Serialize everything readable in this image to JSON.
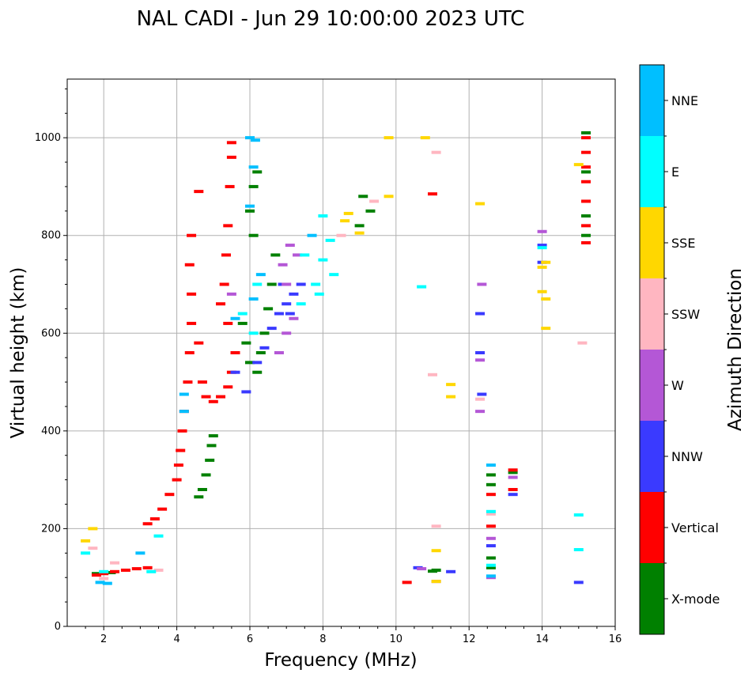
{
  "chart_data": {
    "type": "scatter",
    "title": "NAL CADI - Jun 29 10:00:00 2023 UTC",
    "xlabel": "Frequency (MHz)",
    "ylabel": "Virtual height (km)",
    "xlim": [
      1,
      16
    ],
    "ylim": [
      0,
      1120
    ],
    "xticks": [
      2,
      4,
      6,
      8,
      10,
      12,
      14,
      16
    ],
    "yticks": [
      0,
      200,
      400,
      600,
      800,
      1000
    ],
    "grid": true,
    "colorbar": {
      "label": "Azimuth Direction",
      "categories": [
        {
          "name": "X-mode",
          "color": "#008000"
        },
        {
          "name": "Vertical",
          "color": "#ff0000"
        },
        {
          "name": "NNW",
          "color": "#3a3aff"
        },
        {
          "name": "W",
          "color": "#b457d6"
        },
        {
          "name": "SSW",
          "color": "#ffb6c1"
        },
        {
          "name": "SSE",
          "color": "#ffd700"
        },
        {
          "name": "E",
          "color": "#00ffff"
        },
        {
          "name": "NNE",
          "color": "#00bfff"
        }
      ]
    },
    "series": [
      {
        "name": "X-mode",
        "points": [
          [
            5.0,
            390
          ],
          [
            4.95,
            370
          ],
          [
            4.9,
            340
          ],
          [
            4.8,
            310
          ],
          [
            4.7,
            280
          ],
          [
            4.6,
            265
          ],
          [
            6.2,
            520
          ],
          [
            6.3,
            560
          ],
          [
            6.4,
            600
          ],
          [
            6.5,
            650
          ],
          [
            6.6,
            700
          ],
          [
            6.7,
            760
          ],
          [
            6.1,
            800
          ],
          [
            6.0,
            850
          ],
          [
            6.1,
            900
          ],
          [
            6.2,
            930
          ],
          [
            5.8,
            620
          ],
          [
            5.9,
            580
          ],
          [
            6.0,
            540
          ],
          [
            9.1,
            880
          ],
          [
            9.3,
            850
          ],
          [
            9.0,
            820
          ],
          [
            11.1,
            115
          ],
          [
            11.0,
            113
          ],
          [
            12.6,
            310
          ],
          [
            12.6,
            290
          ],
          [
            12.6,
            140
          ],
          [
            12.6,
            120
          ],
          [
            13.2,
            315
          ],
          [
            15.2,
            1010
          ],
          [
            15.2,
            930
          ],
          [
            15.2,
            840
          ],
          [
            15.2,
            800
          ],
          [
            2.2,
            110
          ],
          [
            1.8,
            108
          ]
        ]
      },
      {
        "name": "Vertical",
        "points": [
          [
            1.8,
            105
          ],
          [
            2.0,
            108
          ],
          [
            2.3,
            112
          ],
          [
            2.6,
            115
          ],
          [
            2.9,
            118
          ],
          [
            3.2,
            120
          ],
          [
            3.2,
            210
          ],
          [
            3.4,
            220
          ],
          [
            3.6,
            240
          ],
          [
            3.8,
            270
          ],
          [
            4.0,
            300
          ],
          [
            4.05,
            330
          ],
          [
            4.1,
            360
          ],
          [
            4.15,
            400
          ],
          [
            4.2,
            440
          ],
          [
            4.3,
            500
          ],
          [
            4.35,
            560
          ],
          [
            4.4,
            620
          ],
          [
            4.4,
            680
          ],
          [
            4.35,
            740
          ],
          [
            4.4,
            800
          ],
          [
            4.6,
            580
          ],
          [
            4.7,
            500
          ],
          [
            4.8,
            470
          ],
          [
            5.0,
            460
          ],
          [
            5.2,
            470
          ],
          [
            5.4,
            490
          ],
          [
            5.5,
            520
          ],
          [
            5.6,
            560
          ],
          [
            5.4,
            620
          ],
          [
            5.2,
            660
          ],
          [
            5.3,
            700
          ],
          [
            5.35,
            760
          ],
          [
            5.4,
            820
          ],
          [
            5.45,
            900
          ],
          [
            5.5,
            960
          ],
          [
            5.5,
            990
          ],
          [
            4.6,
            890
          ],
          [
            10.3,
            90
          ],
          [
            11.0,
            885
          ],
          [
            12.6,
            270
          ],
          [
            12.6,
            205
          ],
          [
            13.2,
            320
          ],
          [
            13.2,
            280
          ],
          [
            15.2,
            1000
          ],
          [
            15.2,
            970
          ],
          [
            15.2,
            940
          ],
          [
            15.2,
            910
          ],
          [
            15.2,
            870
          ],
          [
            15.2,
            820
          ],
          [
            15.2,
            785
          ]
        ]
      },
      {
        "name": "NNW",
        "points": [
          [
            6.2,
            540
          ],
          [
            6.4,
            570
          ],
          [
            6.6,
            610
          ],
          [
            6.8,
            640
          ],
          [
            7.0,
            660
          ],
          [
            7.2,
            680
          ],
          [
            7.4,
            700
          ],
          [
            6.9,
            700
          ],
          [
            7.1,
            640
          ],
          [
            5.6,
            520
          ],
          [
            5.9,
            480
          ],
          [
            10.6,
            120
          ],
          [
            11.5,
            112
          ],
          [
            12.3,
            640
          ],
          [
            12.3,
            560
          ],
          [
            12.35,
            475
          ],
          [
            12.6,
            165
          ],
          [
            13.2,
            270
          ],
          [
            14.0,
            780
          ],
          [
            14.0,
            745
          ],
          [
            15.0,
            90
          ]
        ]
      },
      {
        "name": "W",
        "points": [
          [
            6.8,
            560
          ],
          [
            7.0,
            600
          ],
          [
            7.2,
            630
          ],
          [
            7.0,
            700
          ],
          [
            6.9,
            740
          ],
          [
            7.1,
            780
          ],
          [
            7.3,
            760
          ],
          [
            5.5,
            680
          ],
          [
            12.35,
            700
          ],
          [
            12.3,
            545
          ],
          [
            12.3,
            440
          ],
          [
            12.6,
            180
          ],
          [
            12.6,
            100
          ],
          [
            13.2,
            305
          ],
          [
            14.0,
            808
          ],
          [
            10.7,
            118
          ],
          [
            11.1,
            92
          ]
        ]
      },
      {
        "name": "SSW",
        "points": [
          [
            2.0,
            98
          ],
          [
            2.3,
            130
          ],
          [
            3.5,
            115
          ],
          [
            8.5,
            800
          ],
          [
            9.4,
            870
          ],
          [
            11.0,
            515
          ],
          [
            11.1,
            970
          ],
          [
            11.1,
            205
          ],
          [
            12.3,
            465
          ],
          [
            12.6,
            230
          ],
          [
            15.1,
            580
          ],
          [
            1.7,
            160
          ]
        ]
      },
      {
        "name": "SSE",
        "points": [
          [
            1.5,
            175
          ],
          [
            1.7,
            200
          ],
          [
            8.6,
            830
          ],
          [
            8.7,
            845
          ],
          [
            9.0,
            805
          ],
          [
            9.8,
            880
          ],
          [
            9.8,
            1000
          ],
          [
            10.8,
            1000
          ],
          [
            11.1,
            155
          ],
          [
            11.5,
            495
          ],
          [
            11.5,
            470
          ],
          [
            12.3,
            865
          ],
          [
            14.0,
            735
          ],
          [
            14.0,
            685
          ],
          [
            14.1,
            745
          ],
          [
            14.1,
            670
          ],
          [
            14.1,
            610
          ],
          [
            15.0,
            945
          ],
          [
            11.1,
            92
          ]
        ]
      },
      {
        "name": "E",
        "points": [
          [
            7.8,
            700
          ],
          [
            8.0,
            750
          ],
          [
            8.2,
            790
          ],
          [
            8.0,
            840
          ],
          [
            7.9,
            680
          ],
          [
            8.3,
            720
          ],
          [
            7.5,
            760
          ],
          [
            7.4,
            660
          ],
          [
            6.1,
            600
          ],
          [
            5.8,
            640
          ],
          [
            6.2,
            700
          ],
          [
            1.5,
            150
          ],
          [
            2.0,
            112
          ],
          [
            3.3,
            112
          ],
          [
            3.5,
            185
          ],
          [
            10.7,
            695
          ],
          [
            12.6,
            235
          ],
          [
            12.6,
            125
          ],
          [
            14.0,
            775
          ],
          [
            15.0,
            228
          ],
          [
            15.0,
            157
          ]
        ]
      },
      {
        "name": "NNE",
        "points": [
          [
            4.2,
            475
          ],
          [
            4.2,
            440
          ],
          [
            5.6,
            630
          ],
          [
            6.1,
            670
          ],
          [
            6.0,
            1000
          ],
          [
            6.15,
            995
          ],
          [
            6.1,
            940
          ],
          [
            6.0,
            860
          ],
          [
            6.3,
            720
          ],
          [
            7.7,
            800
          ],
          [
            12.6,
            330
          ],
          [
            12.6,
            103
          ],
          [
            3.0,
            150
          ],
          [
            1.9,
            90
          ],
          [
            2.1,
            88
          ]
        ]
      }
    ]
  }
}
